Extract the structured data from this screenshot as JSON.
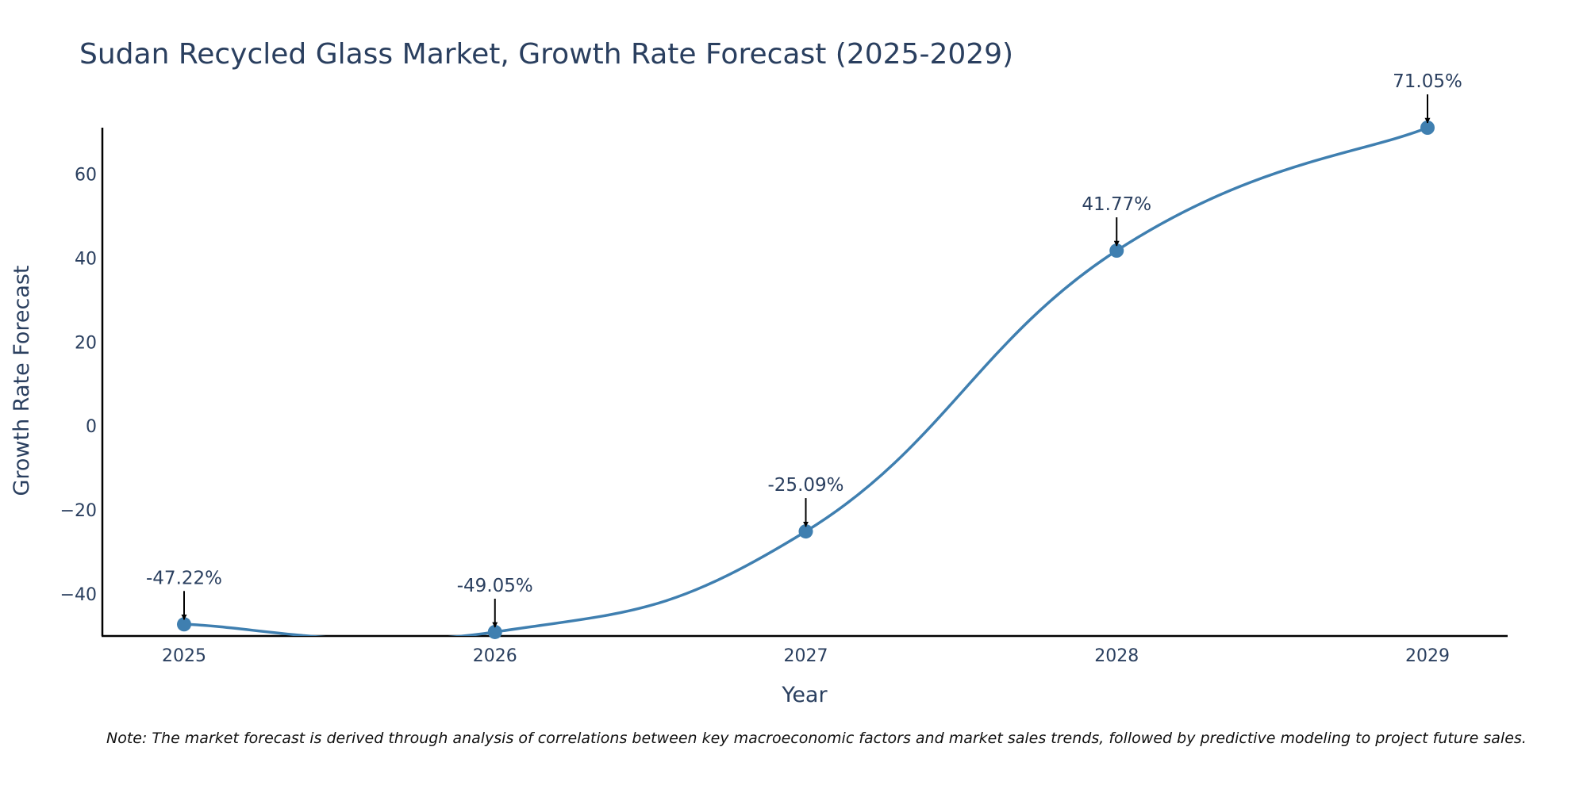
{
  "chart_data": {
    "type": "line",
    "title": "Sudan Recycled Glass Market, Growth Rate Forecast (2025-2029)",
    "xlabel": "Year",
    "ylabel": "Growth Rate Forecast",
    "categories": [
      "2025",
      "2026",
      "2027",
      "2028",
      "2029"
    ],
    "series": [
      {
        "name": "Growth Rate Forecast",
        "values": [
          -47.22,
          -49.05,
          -25.09,
          41.77,
          71.05
        ],
        "labels": [
          "-47.22%",
          "-49.05%",
          "-25.09%",
          "41.77%",
          "71.05%"
        ],
        "color": "#3f7fb0"
      }
    ],
    "ylim": [
      -50,
      71.05
    ],
    "yticks": [
      -40,
      -20,
      0,
      20,
      40,
      60
    ],
    "ytick_labels": [
      "−40",
      "−20",
      "0",
      "20",
      "40",
      "60"
    ],
    "grid": false,
    "note": "Note: The market forecast is derived through analysis of correlations between key macroeconomic factors and market sales trends, followed by predictive modeling to project future sales."
  }
}
